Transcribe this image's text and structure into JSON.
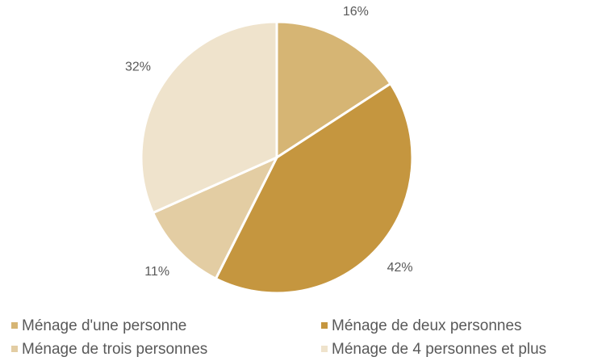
{
  "chart_data": {
    "type": "pie",
    "categories": [
      "Ménage d'une personne",
      "Ménage de deux personnes",
      "Ménage de trois personnes",
      "Ménage de 4 personnes et plus"
    ],
    "values": [
      16,
      42,
      11,
      32
    ],
    "value_labels": [
      "16%",
      "42%",
      "11%",
      "32%"
    ],
    "colors": [
      "#d6b574",
      "#c5963f",
      "#e3cda3",
      "#efe3cc"
    ],
    "legend": "bottom"
  }
}
